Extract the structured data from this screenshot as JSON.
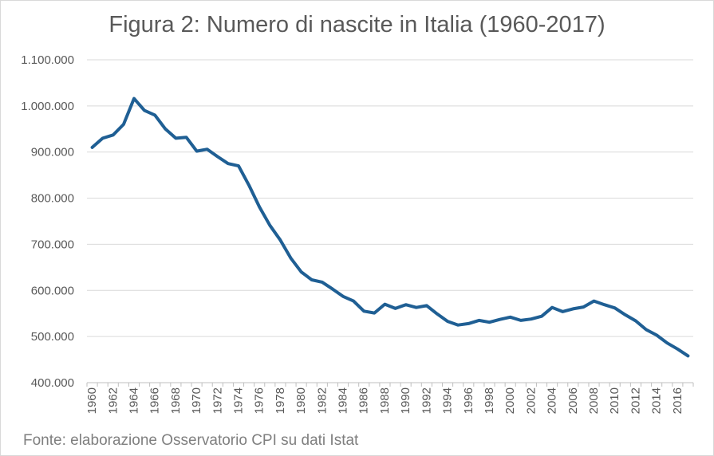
{
  "chart_data": {
    "type": "line",
    "title": "Figura 2: Numero di nascite in Italia (1960-2017)",
    "source": "Fonte: elaborazione Osservatorio CPI su dati Istat",
    "xlabel": "",
    "ylabel": "",
    "ylim": [
      400000,
      1100000
    ],
    "yticks": [
      400000,
      500000,
      600000,
      700000,
      800000,
      900000,
      1000000,
      1100000
    ],
    "ytick_labels": [
      "400.000",
      "500.000",
      "600.000",
      "700.000",
      "800.000",
      "900.000",
      "1.000.000",
      "1.100.000"
    ],
    "xtick_labels": [
      "1960",
      "1962",
      "1964",
      "1966",
      "1968",
      "1970",
      "1972",
      "1974",
      "1976",
      "1978",
      "1980",
      "1982",
      "1984",
      "1986",
      "1988",
      "1990",
      "1992",
      "1994",
      "1996",
      "1998",
      "2000",
      "2002",
      "2004",
      "2006",
      "2008",
      "2010",
      "2012",
      "2014",
      "2016"
    ],
    "grid": true,
    "line_color": "#1f5f94",
    "series": [
      {
        "name": "",
        "x": [
          1960,
          1961,
          1962,
          1963,
          1964,
          1965,
          1966,
          1967,
          1968,
          1969,
          1970,
          1971,
          1972,
          1973,
          1974,
          1975,
          1976,
          1977,
          1978,
          1979,
          1980,
          1981,
          1982,
          1983,
          1984,
          1985,
          1986,
          1987,
          1988,
          1989,
          1990,
          1991,
          1992,
          1993,
          1994,
          1995,
          1996,
          1997,
          1998,
          1999,
          2000,
          2001,
          2002,
          2003,
          2004,
          2005,
          2006,
          2007,
          2008,
          2009,
          2010,
          2011,
          2012,
          2013,
          2014,
          2015,
          2016,
          2017
        ],
        "values": [
          910000,
          930000,
          937000,
          960000,
          1016000,
          990000,
          980000,
          950000,
          930000,
          932000,
          902000,
          906000,
          890000,
          875000,
          870000,
          828000,
          781000,
          741000,
          709000,
          670000,
          640000,
          623000,
          618000,
          603000,
          587000,
          577000,
          555000,
          551000,
          570000,
          561000,
          569000,
          563000,
          567000,
          549000,
          533000,
          525000,
          528000,
          535000,
          531000,
          537000,
          542000,
          535000,
          538000,
          544000,
          563000,
          554000,
          560000,
          564000,
          577000,
          569000,
          562000,
          547000,
          534000,
          515000,
          503000,
          486000,
          473000,
          458000
        ]
      }
    ]
  }
}
